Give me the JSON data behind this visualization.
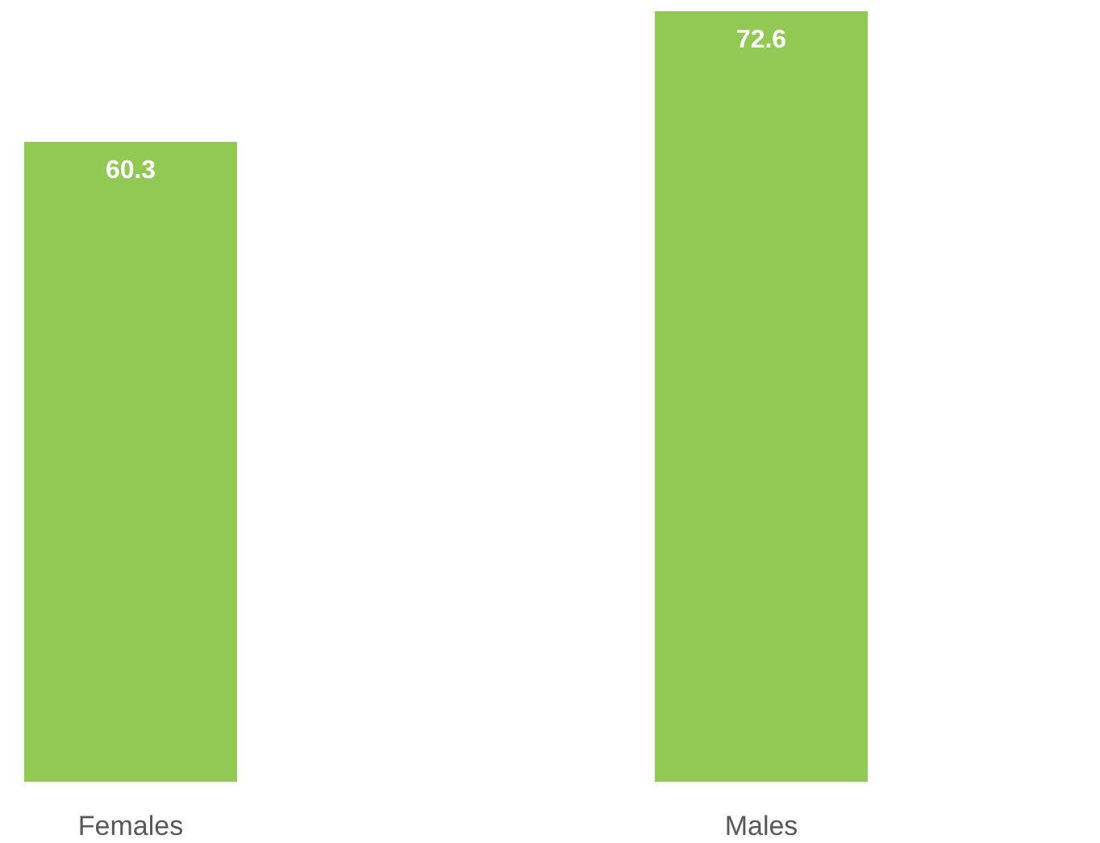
{
  "chart_data": {
    "type": "bar",
    "categories": [
      "Females",
      "Males"
    ],
    "values": [
      60.3,
      72.6
    ],
    "color": "#92c955",
    "data_labels": true
  }
}
